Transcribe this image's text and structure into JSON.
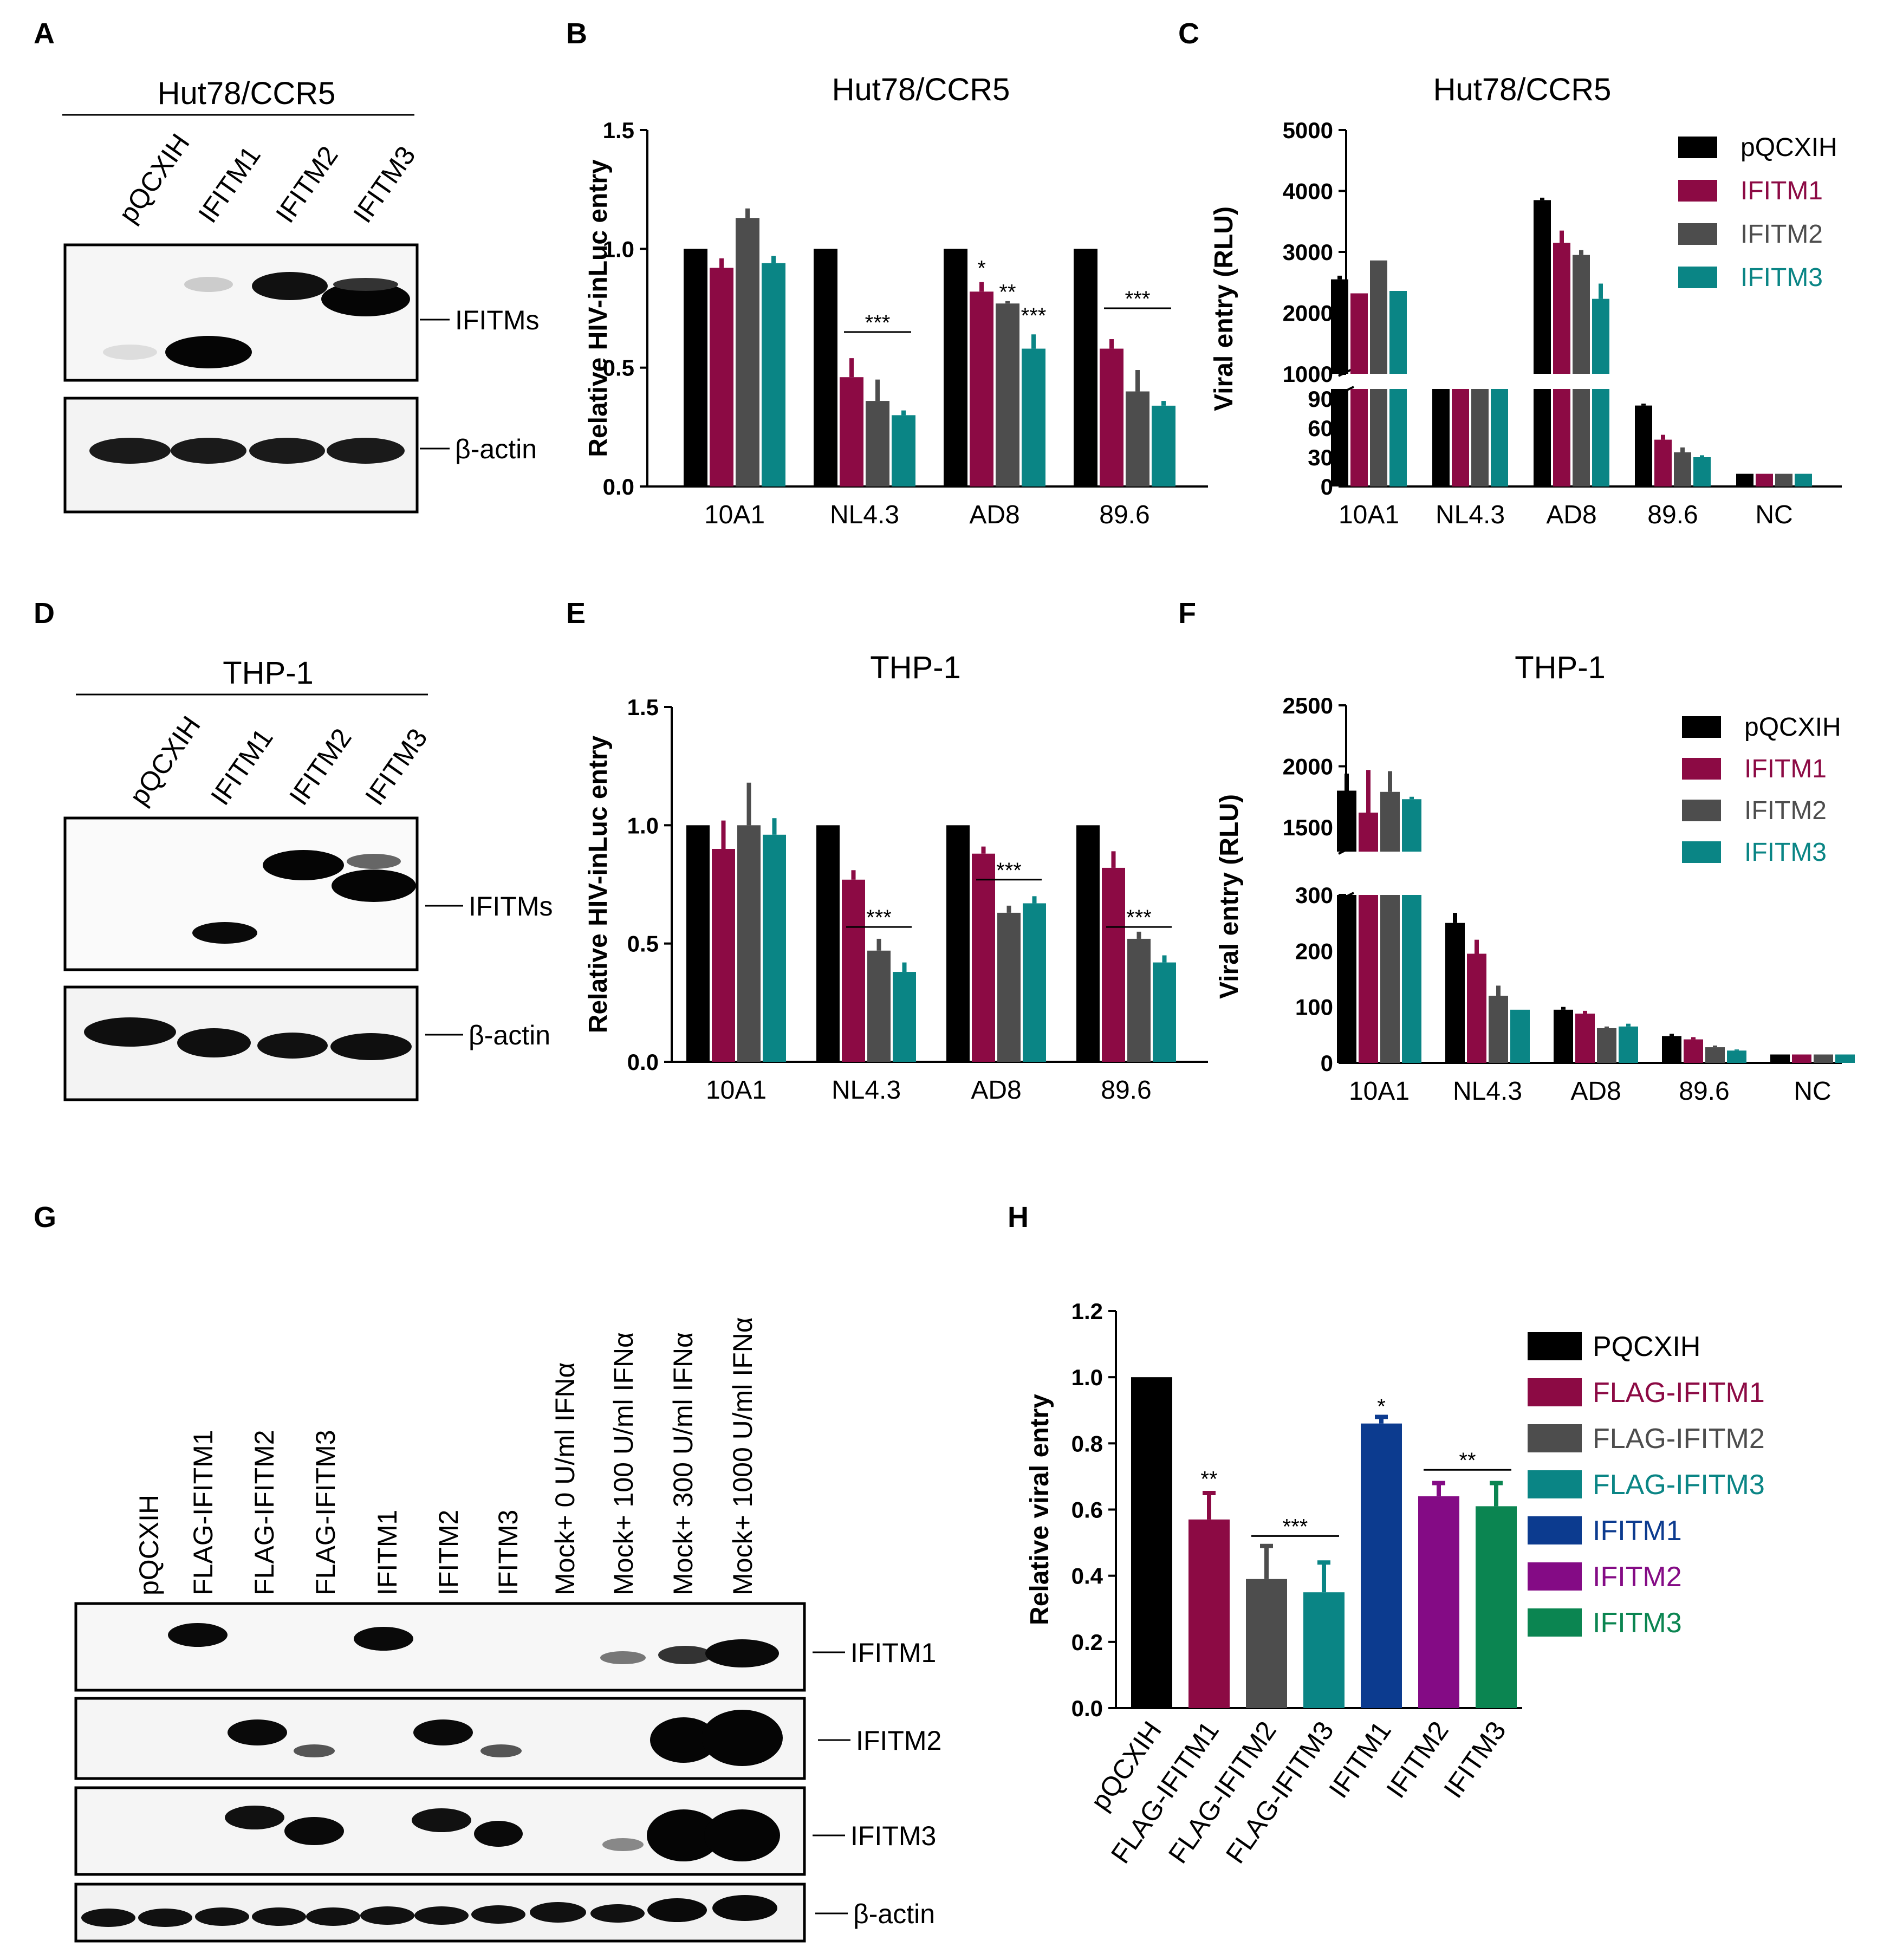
{
  "panel_letters": [
    "A",
    "B",
    "C",
    "D",
    "E",
    "F",
    "G",
    "H"
  ],
  "series_colors": {
    "black": "#000000",
    "maroon": "#8c0a44",
    "gray": "#4d4d4d",
    "teal": "#0a8585",
    "navy": "#0c3b8f",
    "purple": "#840b85",
    "green": "#0b8551"
  },
  "blot_a": {
    "title": "Hut78/CCR5",
    "lanes": [
      "pQCXIH",
      "IFITM1",
      "IFITM2",
      "IFITM3"
    ],
    "bands": [
      "IFITMs",
      "β-actin"
    ]
  },
  "blot_d": {
    "title": "THP-1",
    "lanes": [
      "pQCXIH",
      "IFITM1",
      "IFITM2",
      "IFITM3"
    ],
    "bands": [
      "IFITMs",
      "β-actin"
    ]
  },
  "blot_g": {
    "lanes": [
      "pQCXIH",
      "FLAG-IFITM1",
      "FLAG-IFITM2",
      "FLAG-IFITM3",
      "IFITM1",
      "IFITM2",
      "IFITM3",
      "Mock+ 0 U/ml  IFNα",
      "Mock+ 100 U/ml  IFNα",
      "Mock+ 300 U/ml  IFNα",
      "Mock+ 1000 U/ml  IFNα"
    ],
    "bands": [
      "IFITM1",
      "IFITM2",
      "IFITM3",
      "β-actin"
    ]
  },
  "chart_data": [
    {
      "panel": "B",
      "type": "bar",
      "title": "Hut78/CCR5",
      "ylabel": "Relative HIV-inLuc entry",
      "ylim": [
        0,
        1.5
      ],
      "yticks": [
        "0.0",
        "0.5",
        "1.0",
        "1.5"
      ],
      "categories": [
        "10A1",
        "NL4.3",
        "AD8",
        "89.6"
      ],
      "series": [
        {
          "name": "pQCXIH",
          "values": [
            1.0,
            1.0,
            1.0,
            1.0
          ],
          "errors": [
            0,
            0,
            0,
            0
          ]
        },
        {
          "name": "IFITM1",
          "values": [
            0.92,
            0.46,
            0.82,
            0.58
          ],
          "errors": [
            0.04,
            0.08,
            0.04,
            0.04
          ]
        },
        {
          "name": "IFITM2",
          "values": [
            1.13,
            0.36,
            0.77,
            0.4
          ],
          "errors": [
            0.04,
            0.09,
            0.01,
            0.09
          ]
        },
        {
          "name": "IFITM3",
          "values": [
            0.94,
            0.3,
            0.58,
            0.34
          ],
          "errors": [
            0.03,
            0.02,
            0.06,
            0.02
          ]
        }
      ],
      "annotations": [
        {
          "text": "***",
          "category": "NL4.3",
          "y": 0.65
        },
        {
          "text": "*",
          "category": "AD8",
          "series": 1,
          "y": 0.92
        },
        {
          "text": "**",
          "category": "AD8",
          "series": 2,
          "y": 0.82
        },
        {
          "text": "***",
          "category": "AD8",
          "series": 3,
          "y": 0.72
        },
        {
          "text": "***",
          "category": "89.6",
          "y": 0.75
        }
      ]
    },
    {
      "panel": "C",
      "type": "bar",
      "title": "Hut78/CCR5",
      "ylabel": "Viral entry (RLU)",
      "axis_break": true,
      "ylim_lower": [
        0,
        100
      ],
      "yticks_lower": [
        "0",
        "30",
        "60",
        "90"
      ],
      "ylim_upper": [
        1000,
        5000
      ],
      "yticks_upper": [
        "1000",
        "2000",
        "3000",
        "4000",
        "5000"
      ],
      "legend": [
        "pQCXIH",
        "IFITM1",
        "IFITM2",
        "IFITM3"
      ],
      "categories": [
        "10A1",
        "NL4.3",
        "AD8",
        "89.6",
        "NC"
      ],
      "series": [
        {
          "name": "pQCXIH",
          "values": [
            2550,
            920,
            3850,
            83,
            13
          ],
          "errors": [
            60,
            0,
            40,
            2,
            0
          ]
        },
        {
          "name": "IFITM1",
          "values": [
            2320,
            420,
            3150,
            48,
            13
          ],
          "errors": [
            0,
            0,
            200,
            5,
            0
          ]
        },
        {
          "name": "IFITM2",
          "values": [
            2860,
            320,
            2950,
            35,
            13
          ],
          "errors": [
            0,
            0,
            80,
            5,
            0
          ]
        },
        {
          "name": "IFITM3",
          "values": [
            2360,
            270,
            2230,
            30,
            13
          ],
          "errors": [
            0,
            0,
            250,
            2,
            0
          ]
        }
      ]
    },
    {
      "panel": "E",
      "type": "bar",
      "title": "THP-1",
      "ylabel": "Relative HIV-inLuc entry",
      "ylim": [
        0,
        1.5
      ],
      "yticks": [
        "0.0",
        "0.5",
        "1.0",
        "1.5"
      ],
      "categories": [
        "10A1",
        "NL4.3",
        "AD8",
        "89.6"
      ],
      "series": [
        {
          "name": "pQCXIH",
          "values": [
            1.0,
            1.0,
            1.0,
            1.0
          ],
          "errors": [
            0,
            0,
            0,
            0
          ]
        },
        {
          "name": "IFITM1",
          "values": [
            0.9,
            0.77,
            0.88,
            0.82
          ],
          "errors": [
            0.12,
            0.04,
            0.03,
            0.07
          ]
        },
        {
          "name": "IFITM2",
          "values": [
            1.0,
            0.47,
            0.63,
            0.52
          ],
          "errors": [
            0.18,
            0.05,
            0.03,
            0.03
          ]
        },
        {
          "name": "IFITM3",
          "values": [
            0.96,
            0.38,
            0.67,
            0.42
          ],
          "errors": [
            0.07,
            0.04,
            0.03,
            0.03
          ]
        }
      ],
      "annotations": [
        {
          "text": "***",
          "category": "NL4.3",
          "y": 0.57
        },
        {
          "text": "***",
          "category": "AD8",
          "y": 0.77
        },
        {
          "text": "***",
          "category": "89.6",
          "y": 0.57
        }
      ]
    },
    {
      "panel": "F",
      "type": "bar",
      "title": "THP-1",
      "ylabel": "Viral entry (RLU)",
      "axis_break": true,
      "ylim_lower": [
        0,
        300
      ],
      "yticks_lower": [
        "0",
        "100",
        "200",
        "300"
      ],
      "ylim_upper": [
        1300,
        2500
      ],
      "yticks_upper": [
        "1500",
        "2000",
        "2500"
      ],
      "legend": [
        "pQCXIH",
        "IFITM1",
        "IFITM2",
        "IFITM3"
      ],
      "categories": [
        "10A1",
        "NL4.3",
        "AD8",
        "89.6",
        "NC"
      ],
      "series": [
        {
          "name": "pQCXIH",
          "values": [
            1800,
            250,
            95,
            48,
            15
          ],
          "errors": [
            140,
            18,
            5,
            4,
            0
          ]
        },
        {
          "name": "IFITM1",
          "values": [
            1620,
            195,
            88,
            42,
            15
          ],
          "errors": [
            350,
            25,
            5,
            4,
            0
          ]
        },
        {
          "name": "IFITM2",
          "values": [
            1790,
            120,
            62,
            28,
            15
          ],
          "errors": [
            170,
            18,
            3,
            3,
            0
          ]
        },
        {
          "name": "IFITM3",
          "values": [
            1730,
            95,
            65,
            22,
            15
          ],
          "errors": [
            20,
            0,
            5,
            2,
            0
          ]
        }
      ]
    },
    {
      "panel": "H",
      "type": "bar",
      "ylabel": "Relative viral entry",
      "ylim": [
        0,
        1.2
      ],
      "yticks": [
        "0.0",
        "0.2",
        "0.4",
        "0.6",
        "0.8",
        "1.0",
        "1.2"
      ],
      "categories": [
        "pQCXIH",
        "FLAG-IFITM1",
        "FLAG-IFITM2",
        "FLAG-IFITM3",
        "IFITM1",
        "IFITM2",
        "IFITM3"
      ],
      "values": [
        1.0,
        0.57,
        0.39,
        0.35,
        0.86,
        0.64,
        0.61
      ],
      "errors": [
        0,
        0.08,
        0.1,
        0.09,
        0.02,
        0.04,
        0.07
      ],
      "legend": [
        "PQCXIH",
        "FLAG-IFITM1",
        "FLAG-IFITM2",
        "FLAG-IFITM3",
        "IFITM1",
        "IFITM2",
        "IFITM3"
      ],
      "annotations": [
        {
          "text": "**",
          "index": 1,
          "y": 0.67
        },
        {
          "text": "***",
          "from": 2,
          "to": 3,
          "y": 0.52
        },
        {
          "text": "*",
          "index": 4,
          "y": 0.89
        },
        {
          "text": "**",
          "from": 5,
          "to": 6,
          "y": 0.72
        }
      ]
    }
  ]
}
